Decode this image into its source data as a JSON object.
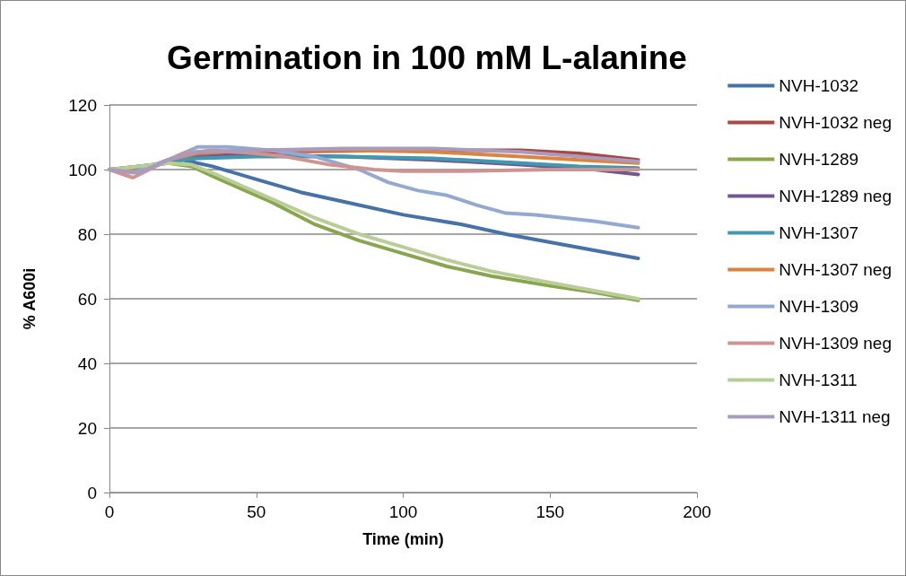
{
  "chart_data": {
    "type": "line",
    "title": "Germination in 100 mM L-alanine",
    "xlabel": "Time (min)",
    "ylabel": "% A600i",
    "xlim": [
      0,
      200
    ],
    "xticks": [
      0,
      50,
      100,
      150,
      200
    ],
    "ylim": [
      0,
      120
    ],
    "yticks": [
      0,
      20,
      40,
      60,
      80,
      100,
      120
    ],
    "grid": "y",
    "legend": "right",
    "marker": "none",
    "line_style": "solid",
    "series": [
      {
        "name": "NVH-1032",
        "color": "#4572a7",
        "x": [
          0,
          10,
          20,
          25,
          35,
          50,
          65,
          80,
          100,
          120,
          135,
          150,
          165,
          180
        ],
        "values": [
          100,
          101,
          102,
          103,
          101,
          97,
          93,
          90,
          86,
          83,
          80,
          77.5,
          75,
          72.5
        ]
      },
      {
        "name": "NVH-1032 neg",
        "color": "#aa4643",
        "x": [
          0,
          10,
          20,
          30,
          50,
          100,
          140,
          160,
          180
        ],
        "values": [
          100,
          99,
          103,
          105,
          105.5,
          106,
          106,
          105,
          103
        ]
      },
      {
        "name": "NVH-1289",
        "color": "#89a54e",
        "x": [
          0,
          10,
          20,
          28,
          35,
          45,
          55,
          70,
          85,
          100,
          115,
          130,
          150,
          165,
          180
        ],
        "values": [
          100,
          101,
          102,
          101,
          98,
          94,
          90,
          83,
          78,
          74,
          70,
          67,
          64,
          62,
          59.5
        ]
      },
      {
        "name": "NVH-1289 neg",
        "color": "#71588f",
        "x": [
          0,
          10,
          20,
          30,
          50,
          80,
          110,
          140,
          165,
          180
        ],
        "values": [
          100,
          99.5,
          102.5,
          104,
          104.5,
          104,
          103,
          101.5,
          100,
          98.5
        ]
      },
      {
        "name": "NVH-1307",
        "color": "#4198af",
        "x": [
          0,
          10,
          20,
          30,
          50,
          80,
          110,
          140,
          160,
          180
        ],
        "values": [
          100,
          100.5,
          102.5,
          103.5,
          104,
          104,
          103.5,
          102,
          101,
          100.5
        ]
      },
      {
        "name": "NVH-1307 neg",
        "color": "#db843d",
        "x": [
          0,
          10,
          20,
          30,
          50,
          80,
          110,
          140,
          160,
          180
        ],
        "values": [
          100,
          99.5,
          103,
          105,
          106,
          106,
          105.5,
          104,
          103,
          102
        ]
      },
      {
        "name": "NVH-1309",
        "color": "#93a9cf",
        "x": [
          0,
          8,
          20,
          30,
          40,
          55,
          70,
          85,
          95,
          105,
          115,
          125,
          135,
          145,
          155,
          165,
          180
        ],
        "values": [
          100,
          99,
          103,
          107,
          107,
          106,
          104,
          100,
          96,
          93.5,
          92,
          89,
          86.5,
          86,
          85,
          84,
          82
        ]
      },
      {
        "name": "NVH-1309 neg",
        "color": "#d19392",
        "x": [
          0,
          8,
          18,
          25,
          35,
          50,
          60,
          75,
          90,
          100,
          120,
          150,
          180
        ],
        "values": [
          100,
          97.5,
          102,
          105,
          106,
          105,
          104,
          101.5,
          100,
          99.5,
          99.5,
          100,
          100
        ]
      },
      {
        "name": "NVH-1311",
        "color": "#b9cd96",
        "x": [
          0,
          10,
          20,
          28,
          35,
          45,
          55,
          70,
          85,
          100,
          115,
          130,
          150,
          165,
          180
        ],
        "values": [
          100,
          101,
          102,
          101.5,
          99,
          95,
          91,
          85,
          80,
          76,
          72,
          68.5,
          65,
          62.5,
          60
        ]
      },
      {
        "name": "NVH-1311 neg",
        "color": "#a99bbd",
        "x": [
          0,
          10,
          20,
          30,
          50,
          80,
          110,
          140,
          160,
          180
        ],
        "values": [
          100,
          99,
          103,
          105.5,
          106,
          106.5,
          106.5,
          105.5,
          104,
          102.5
        ]
      }
    ]
  }
}
